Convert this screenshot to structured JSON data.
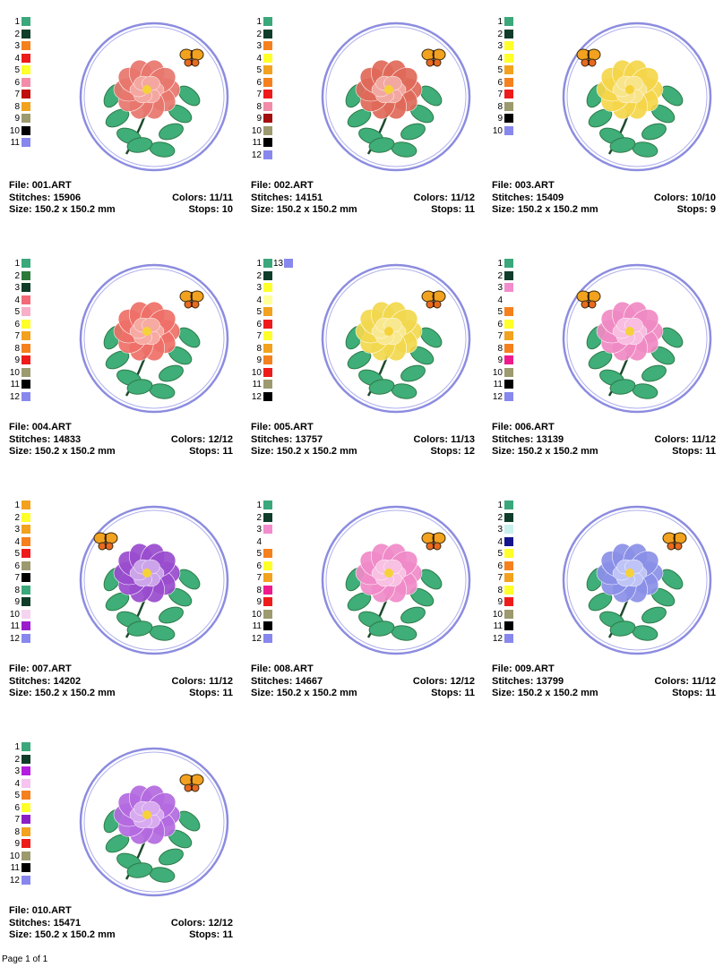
{
  "page_label": "Page 1 of 1",
  "labels": {
    "file": "File:",
    "stitches": "Stitches:",
    "size": "Size:",
    "colors": "Colors:",
    "stops": "Stops:"
  },
  "designs": [
    {
      "file": "001.ART",
      "stitches": "15906",
      "size": "150.2 x 150.2 mm",
      "colors": "11/11",
      "stops": "10",
      "flower": "#e8776e",
      "flower_inner": "#f4a7a0",
      "stem": "#2f7a4a",
      "butterfly_side": "right",
      "swatches": [
        [
          "1",
          "#3aa87a"
        ],
        [
          "2",
          "#0f3d2a"
        ],
        [
          "3",
          "#f5801e"
        ],
        [
          "4",
          "#ee1b1b"
        ],
        [
          "5",
          "#ffff2a"
        ],
        [
          "6",
          "#f28ca8"
        ],
        [
          "7",
          "#c00d0d"
        ],
        [
          "8",
          "#f2a21e"
        ],
        [
          "9",
          "#9c9a6e"
        ],
        [
          "10",
          "#000000"
        ],
        [
          "11",
          "#8787ee"
        ]
      ]
    },
    {
      "file": "002.ART",
      "stitches": "14151",
      "size": "150.2 x 150.2 mm",
      "colors": "11/12",
      "stops": "11",
      "flower": "#e06a5a",
      "flower_inner": "#f2a8a0",
      "stem": "#2f7a4a",
      "butterfly_side": "right",
      "swatches": [
        [
          "1",
          "#3aa87a"
        ],
        [
          "2",
          "#0f3d2a"
        ],
        [
          "3",
          "#f5801e"
        ],
        [
          "4",
          "#ffff2a"
        ],
        [
          "5",
          "#f2a21e"
        ],
        [
          "6",
          "#f5801e"
        ],
        [
          "7",
          "#ee1b1b"
        ],
        [
          "8",
          "#f28ca8"
        ],
        [
          "9",
          "#a30f0f"
        ],
        [
          "10",
          "#9c9a6e"
        ],
        [
          "11",
          "#000000"
        ],
        [
          "12",
          "#8787ee"
        ]
      ]
    },
    {
      "file": "003.ART",
      "stitches": "15409",
      "size": "150.2 x 150.2 mm",
      "colors": "10/10",
      "stops": "9",
      "flower": "#f5d64a",
      "flower_inner": "#f8e48a",
      "stem": "#2f7a4a",
      "butterfly_side": "left",
      "swatches": [
        [
          "1",
          "#3aa87a"
        ],
        [
          "2",
          "#0f3d2a"
        ],
        [
          "3",
          "#ffff2a"
        ],
        [
          "4",
          "#ffff2a"
        ],
        [
          "5",
          "#f2a21e"
        ],
        [
          "6",
          "#f5801e"
        ],
        [
          "7",
          "#ee1b1b"
        ],
        [
          "8",
          "#9c9a6e"
        ],
        [
          "9",
          "#000000"
        ],
        [
          "10",
          "#8787ee"
        ]
      ]
    },
    {
      "file": "004.ART",
      "stitches": "14833",
      "size": "150.2 x 150.2 mm",
      "colors": "12/12",
      "stops": "11",
      "flower": "#ee7068",
      "flower_inner": "#f6aaa2",
      "stem": "#2f7a4a",
      "butterfly_side": "right",
      "swatches": [
        [
          "1",
          "#3aa87a"
        ],
        [
          "2",
          "#2d7a3a"
        ],
        [
          "3",
          "#0f3d2a"
        ],
        [
          "4",
          "#f26b78"
        ],
        [
          "5",
          "#f7b0c8"
        ],
        [
          "6",
          "#ffff2a"
        ],
        [
          "7",
          "#f2a21e"
        ],
        [
          "8",
          "#f5801e"
        ],
        [
          "9",
          "#ee1b1b"
        ],
        [
          "10",
          "#9c9a6e"
        ],
        [
          "11",
          "#000000"
        ],
        [
          "12",
          "#8787ee"
        ]
      ]
    },
    {
      "file": "005.ART",
      "stitches": "13757",
      "size": "150.2 x 150.2 mm",
      "colors": "11/13",
      "stops": "12",
      "flower": "#f2d84e",
      "flower_inner": "#f8e890",
      "stem": "#2f7a4a",
      "butterfly_side": "right",
      "swatches": [
        [
          "1",
          "#3aa87a"
        ],
        [
          "2",
          "#0f3d2a"
        ],
        [
          "3",
          "#ffff2a"
        ],
        [
          "4",
          "#ffff9a"
        ],
        [
          "5",
          "#f2a21e"
        ],
        [
          "6",
          "#ee1b1b"
        ],
        [
          "7",
          "#ffff2a"
        ],
        [
          "8",
          "#f2a21e"
        ],
        [
          "9",
          "#f5801e"
        ],
        [
          "10",
          "#ee1b1b"
        ],
        [
          "11",
          "#9c9a6e"
        ],
        [
          "12",
          "#000000"
        ]
      ],
      "extra": [
        "13",
        "#8787ee"
      ]
    },
    {
      "file": "006.ART",
      "stitches": "13139",
      "size": "150.2 x 150.2 mm",
      "colors": "11/12",
      "stops": "11",
      "flower": "#f08ac4",
      "flower_inner": "#f8bde0",
      "stem": "#2f7a4a",
      "butterfly_side": "left",
      "swatches": [
        [
          "1",
          "#3aa87a"
        ],
        [
          "2",
          "#0f3d2a"
        ],
        [
          "3",
          "#f28ccc"
        ],
        [
          "4",
          ""
        ],
        [
          "5",
          "#f5801e"
        ],
        [
          "6",
          "#ffff2a"
        ],
        [
          "7",
          "#f2a21e"
        ],
        [
          "8",
          "#f5801e"
        ],
        [
          "9",
          "#ee1b8c"
        ],
        [
          "10",
          "#9c9a6e"
        ],
        [
          "11",
          "#000000"
        ],
        [
          "12",
          "#8787ee"
        ]
      ]
    },
    {
      "file": "007.ART",
      "stitches": "14202",
      "size": "150.2 x 150.2 mm",
      "colors": "11/12",
      "stops": "11",
      "flower": "#9a4ccf",
      "flower_inner": "#cba4ea",
      "stem": "#2f7a4a",
      "butterfly_side": "left",
      "swatches": [
        [
          "1",
          "#f2a21e"
        ],
        [
          "2",
          "#ffff2a"
        ],
        [
          "3",
          "#f2a21e"
        ],
        [
          "4",
          "#f5801e"
        ],
        [
          "5",
          "#ee1b1b"
        ],
        [
          "6",
          "#9c9a6e"
        ],
        [
          "7",
          "#000000"
        ],
        [
          "8",
          "#3aa87a"
        ],
        [
          "9",
          "#0f3d2a"
        ],
        [
          "10",
          "#f5d4f0"
        ],
        [
          "11",
          "#9a1ecc"
        ],
        [
          "12",
          "#8787ee"
        ]
      ]
    },
    {
      "file": "008.ART",
      "stitches": "14667",
      "size": "150.2 x 150.2 mm",
      "colors": "12/12",
      "stops": "11",
      "flower": "#f08ac8",
      "flower_inner": "#f8c0e2",
      "stem": "#2f7a4a",
      "butterfly_side": "right",
      "swatches": [
        [
          "1",
          "#3aa87a"
        ],
        [
          "2",
          "#0f3d2a"
        ],
        [
          "3",
          "#f28ccc"
        ],
        [
          "4",
          ""
        ],
        [
          "5",
          "#f5801e"
        ],
        [
          "6",
          "#ffff2a"
        ],
        [
          "7",
          "#f2a21e"
        ],
        [
          "8",
          "#ee1b8c"
        ],
        [
          "9",
          "#ee1b1b"
        ],
        [
          "10",
          "#9c9a6e"
        ],
        [
          "11",
          "#000000"
        ],
        [
          "12",
          "#8787ee"
        ]
      ]
    },
    {
      "file": "009.ART",
      "stitches": "13799",
      "size": "150.2 x 150.2 mm",
      "colors": "11/12",
      "stops": "11",
      "flower": "#8a90e8",
      "flower_inner": "#bfc4f6",
      "stem": "#2f7a4a",
      "butterfly_side": "right",
      "swatches": [
        [
          "1",
          "#3aa87a"
        ],
        [
          "2",
          "#0f3d2a"
        ],
        [
          "3",
          "#c8f0ee"
        ],
        [
          "4",
          "#14148c"
        ],
        [
          "5",
          "#ffff2a"
        ],
        [
          "6",
          "#f5801e"
        ],
        [
          "7",
          "#f2a21e"
        ],
        [
          "8",
          "#ffff2a"
        ],
        [
          "9",
          "#ee1b1b"
        ],
        [
          "10",
          "#9c9a6e"
        ],
        [
          "11",
          "#000000"
        ],
        [
          "12",
          "#8787ee"
        ]
      ]
    },
    {
      "file": "010.ART",
      "stitches": "15471",
      "size": "150.2 x 150.2 mm",
      "colors": "12/12",
      "stops": "11",
      "flower": "#b46ae0",
      "flower_inner": "#d8aaf0",
      "stem": "#2f7a4a",
      "butterfly_side": "right",
      "swatches": [
        [
          "1",
          "#3aa87a"
        ],
        [
          "2",
          "#0f3d2a"
        ],
        [
          "3",
          "#b41ee0"
        ],
        [
          "4",
          "#f5c4f0"
        ],
        [
          "5",
          "#f5801e"
        ],
        [
          "6",
          "#ffff2a"
        ],
        [
          "7",
          "#8c1ec8"
        ],
        [
          "8",
          "#f2a21e"
        ],
        [
          "9",
          "#ee1b1b"
        ],
        [
          "10",
          "#9c9a6e"
        ],
        [
          "11",
          "#000000"
        ],
        [
          "12",
          "#8787ee"
        ]
      ]
    }
  ]
}
